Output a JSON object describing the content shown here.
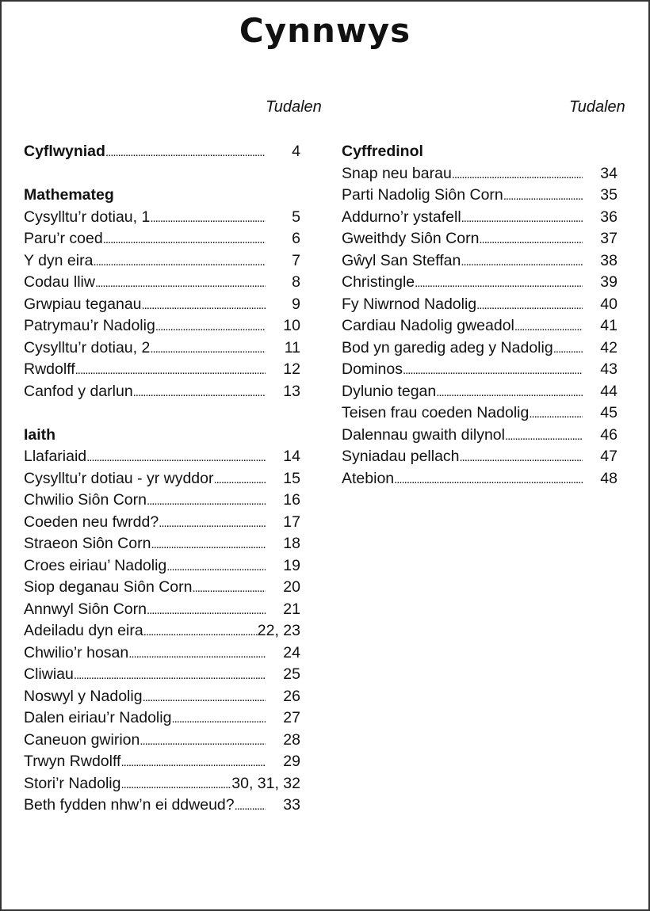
{
  "title": "Cynnwys",
  "page_label": "Tudalen",
  "left_column": [
    {
      "label": "Cyflwyniad",
      "page": "4",
      "bold": true
    },
    {
      "spacer": true
    },
    {
      "heading": "Mathemateg"
    },
    {
      "label": "Cysylltu’r dotiau, 1",
      "page": "5"
    },
    {
      "label": "Paru’r coed",
      "page": "6"
    },
    {
      "label": "Y dyn eira",
      "page": "7"
    },
    {
      "label": "Codau lliw",
      "page": "8"
    },
    {
      "label": "Grwpiau teganau",
      "page": "9"
    },
    {
      "label": "Patrymau’r Nadolig",
      "page": "10"
    },
    {
      "label": "Cysylltu’r dotiau, 2",
      "page": "11"
    },
    {
      "label": "Rwdolff",
      "page": "12"
    },
    {
      "label": "Canfod y darlun",
      "page": "13"
    },
    {
      "spacer": true
    },
    {
      "heading": "Iaith"
    },
    {
      "label": "Llafariaid",
      "page": "14"
    },
    {
      "label": "Cysylltu’r dotiau - yr wyddor",
      "page": "15"
    },
    {
      "label": "Chwilio Siôn Corn",
      "page": "16"
    },
    {
      "label": "Coeden neu fwrdd?",
      "page": "17"
    },
    {
      "label": "Straeon Siôn Corn",
      "page": "18"
    },
    {
      "label": "Croes eiriau’ Nadolig",
      "page": "19"
    },
    {
      "label": "Siop deganau Siôn Corn",
      "page": "20"
    },
    {
      "label": "Annwyl Siôn Corn",
      "page": "21"
    },
    {
      "label": "Adeiladu dyn eira",
      "page": "22, 23"
    },
    {
      "label": "Chwilio’r hosan",
      "page": "24"
    },
    {
      "label": "Cliwiau",
      "page": "25"
    },
    {
      "label": "Noswyl y Nadolig",
      "page": "26"
    },
    {
      "label": "Dalen eiriau’r Nadolig",
      "page": "27"
    },
    {
      "label": "Caneuon gwirion",
      "page": "28"
    },
    {
      "label": "Trwyn Rwdolff",
      "page": "29"
    },
    {
      "label": "Stori’r Nadolig",
      "page": "30, 31, 32"
    },
    {
      "label": "Beth fydden nhw’n ei ddweud?",
      "page": "33"
    }
  ],
  "right_column": [
    {
      "heading": "Cyffredinol"
    },
    {
      "label": "Snap neu barau",
      "page": "34"
    },
    {
      "label": "Parti Nadolig Siôn Corn",
      "page": "35"
    },
    {
      "label": "Addurno’r ystafell",
      "page": "36"
    },
    {
      "label": "Gweithdy Siôn Corn",
      "page": "37"
    },
    {
      "label": "Gŵyl San Steffan",
      "page": "38"
    },
    {
      "label": "Christingle",
      "page": "39"
    },
    {
      "label": "Fy Niwrnod Nadolig",
      "page": "40"
    },
    {
      "label": "Cardiau Nadolig gweadol",
      "page": "41"
    },
    {
      "label": "Bod yn garedig adeg y Nadolig",
      "page": "42"
    },
    {
      "label": "Dominos",
      "page": "43"
    },
    {
      "label": "Dylunio tegan",
      "page": "44"
    },
    {
      "label": "Teisen frau coeden Nadolig",
      "page": "45"
    },
    {
      "label": "Dalennau gwaith dilynol",
      "page": "46"
    },
    {
      "label": "Syniadau pellach",
      "page": "47"
    },
    {
      "label": "Atebion",
      "page": "48"
    }
  ]
}
